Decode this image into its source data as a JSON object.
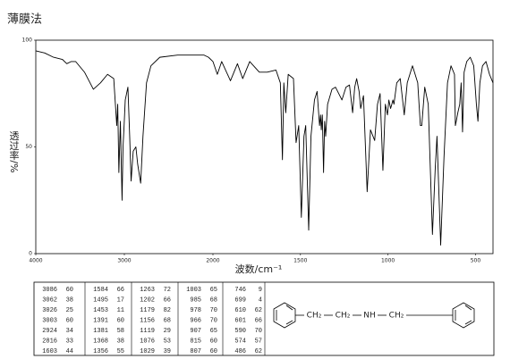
{
  "chart_data": {
    "type": "line",
    "title": "薄膜法",
    "x_label": "波数/cm⁻¹",
    "y_label": "透过率/%",
    "xlim": [
      4000,
      400
    ],
    "x_scale_break": 2000,
    "xticks": [
      4000,
      3000,
      2000,
      1500,
      1000,
      500
    ],
    "ylim": [
      0,
      100
    ],
    "yticks": [
      0,
      50,
      100
    ],
    "grid": false,
    "series": [
      {
        "color": "#000000",
        "x": [
          4000,
          3900,
          3800,
          3700,
          3650,
          3600,
          3550,
          3450,
          3350,
          3270,
          3190,
          3120,
          3086,
          3075,
          3062,
          3045,
          3026,
          3015,
          3003,
          2990,
          2960,
          2940,
          2924,
          2900,
          2870,
          2850,
          2816,
          2790,
          2750,
          2700,
          2600,
          2400,
          2200,
          2100,
          2050,
          2000,
          1975,
          1950,
          1900,
          1860,
          1830,
          1790,
          1735,
          1690,
          1640,
          1615,
          1603,
          1595,
          1584,
          1570,
          1540,
          1525,
          1510,
          1495,
          1480,
          1470,
          1453,
          1440,
          1420,
          1405,
          1391,
          1385,
          1381,
          1375,
          1368,
          1362,
          1356,
          1345,
          1320,
          1300,
          1263,
          1240,
          1220,
          1202,
          1190,
          1179,
          1165,
          1156,
          1140,
          1119,
          1100,
          1076,
          1060,
          1045,
          1029,
          1015,
          1003,
          995,
          985,
          978,
          972,
          966,
          950,
          930,
          907,
          890,
          860,
          830,
          815,
          807,
          790,
          770,
          746,
          730,
          720,
          699,
          680,
          660,
          640,
          620,
          615,
          610,
          601,
          590,
          582,
          574,
          565,
          550,
          530,
          510,
          495,
          486,
          475,
          460,
          440,
          420,
          400
        ],
        "values": [
          95,
          94,
          92,
          91,
          89,
          90,
          90,
          85,
          77,
          80,
          84,
          82,
          60,
          70,
          38,
          62,
          25,
          50,
          60,
          72,
          78,
          55,
          34,
          48,
          50,
          42,
          33,
          55,
          80,
          88,
          92,
          93,
          93,
          93,
          92,
          90,
          84,
          90,
          81,
          89,
          82,
          90,
          85,
          85,
          86,
          80,
          44,
          80,
          66,
          84,
          82,
          52,
          60,
          17,
          55,
          60,
          11,
          55,
          72,
          76,
          60,
          65,
          58,
          65,
          38,
          62,
          55,
          70,
          77,
          78,
          72,
          78,
          79,
          66,
          78,
          82,
          76,
          68,
          74,
          29,
          58,
          53,
          70,
          75,
          39,
          70,
          65,
          72,
          68,
          70,
          72,
          70,
          80,
          82,
          65,
          80,
          88,
          80,
          60,
          60,
          78,
          70,
          9,
          40,
          55,
          4,
          45,
          80,
          88,
          84,
          60,
          62,
          66,
          70,
          80,
          57,
          85,
          90,
          92,
          88,
          70,
          62,
          80,
          88,
          90,
          84,
          80
        ]
      }
    ]
  },
  "peak_table": [
    [
      [
        3086,
        60
      ],
      [
        3062,
        38
      ],
      [
        3026,
        25
      ],
      [
        3003,
        60
      ],
      [
        2924,
        34
      ],
      [
        2816,
        33
      ],
      [
        1603,
        44
      ]
    ],
    [
      [
        1584,
        66
      ],
      [
        1495,
        17
      ],
      [
        1453,
        11
      ],
      [
        1391,
        60
      ],
      [
        1381,
        58
      ],
      [
        1368,
        38
      ],
      [
        1356,
        55
      ]
    ],
    [
      [
        1263,
        72
      ],
      [
        1202,
        66
      ],
      [
        1179,
        82
      ],
      [
        1156,
        68
      ],
      [
        1119,
        29
      ],
      [
        1076,
        53
      ],
      [
        1029,
        39
      ]
    ],
    [
      [
        1003,
        65
      ],
      [
        985,
        68
      ],
      [
        978,
        70
      ],
      [
        966,
        70
      ],
      [
        907,
        65
      ],
      [
        815,
        60
      ],
      [
        807,
        60
      ]
    ],
    [
      [
        746,
        9
      ],
      [
        699,
        4
      ],
      [
        610,
        62
      ],
      [
        601,
        66
      ],
      [
        590,
        70
      ],
      [
        574,
        57
      ],
      [
        486,
        62
      ]
    ]
  ],
  "structure": {
    "groups": [
      "CH₂",
      "CH₂",
      "NH",
      "CH₂"
    ]
  }
}
